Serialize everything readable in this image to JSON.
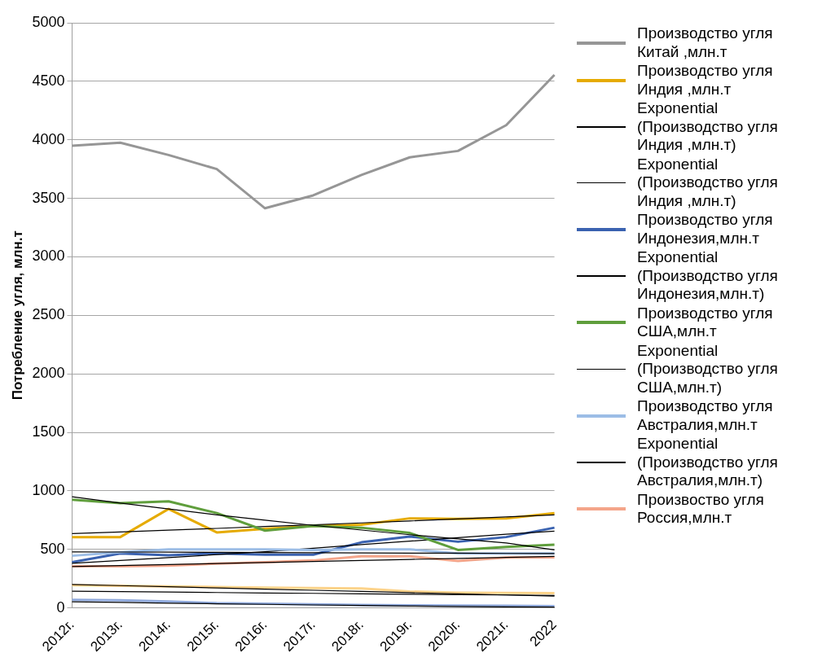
{
  "chart_data": {
    "type": "line",
    "ylabel": "Потребление угля, млн.т",
    "categories": [
      "2012г.",
      "2013г.",
      "2014г.",
      "2015г.",
      "2016г.",
      "2017г.",
      "2018г.",
      "2019г.",
      "2020г.",
      "2021г.",
      "2022"
    ],
    "ylim": [
      0,
      5000
    ],
    "yticks": [
      0,
      500,
      1000,
      1500,
      2000,
      2500,
      3000,
      3500,
      4000,
      4500,
      5000
    ],
    "grid": "y",
    "legend": "right",
    "marker": "none",
    "line_style": "solid",
    "series": [
      {
        "name": "Производство угля Китай ,млн.т",
        "color": "#969696",
        "values": [
          3950,
          3975,
          3870,
          3750,
          3415,
          3525,
          3700,
          3850,
          3905,
          4125,
          4555
        ]
      },
      {
        "name": "Производство угля Индия ,млн.т",
        "color": "#e6ab02",
        "values": [
          605,
          605,
          845,
          645,
          675,
          700,
          710,
          765,
          760,
          765,
          810
        ]
      },
      {
        "name": "Exponential (Производство угля Индия ,млн.т)",
        "color": "#000000",
        "values": [
          635,
          649,
          664,
          679,
          695,
          710,
          726,
          743,
          760,
          777,
          795
        ]
      },
      {
        "name": "Exponential (Производство угля Индия ,млн.т)",
        "color": "#000000",
        "values": [
          143,
          139,
          135,
          131,
          127,
          124,
          120,
          116,
          113,
          110,
          106
        ]
      },
      {
        "name": "Производство угля Индонезия,млн.т",
        "color": "#3a62b0",
        "values": [
          390,
          465,
          450,
          465,
          455,
          455,
          560,
          610,
          565,
          605,
          685
        ]
      },
      {
        "name": "Exponential (Производство угля Индонезия,млн.т)",
        "color": "#000000",
        "values": [
          380,
          405,
          430,
          455,
          480,
          510,
          540,
          570,
          600,
          630,
          655
        ]
      },
      {
        "name": "Производство угля США,млн.т",
        "color": "#5f9e3c",
        "values": [
          925,
          895,
          910,
          810,
          660,
          700,
          685,
          640,
          495,
          520,
          540
        ]
      },
      {
        "name": "Exponential (Производство угля США,млн.т)",
        "color": "#000000",
        "values": [
          950,
          895,
          845,
          795,
          750,
          705,
          665,
          625,
          590,
          555,
          495
        ]
      },
      {
        "name": "Производство угля Австралия,млн.т",
        "color": "#9cbde6",
        "values": [
          445,
          475,
          500,
          500,
          500,
          495,
          500,
          500,
          465,
          465,
          465
        ]
      },
      {
        "name": "Exponential (Производство угля Австралия,млн.т)",
        "color": "#000000",
        "values": [
          478,
          477,
          476,
          474,
          473,
          471,
          470,
          468,
          467,
          465,
          464
        ]
      },
      {
        "name": "Произвоство угля Россия,млн.т",
        "color": "#f4a58a",
        "values": [
          355,
          355,
          360,
          378,
          390,
          405,
          440,
          440,
          400,
          430,
          432
        ]
      },
      {
        "color": "#000000",
        "values": [
          353,
          362,
          370,
          379,
          388,
          396,
          405,
          414,
          422,
          431,
          440
        ]
      },
      {
        "color": "#fdd38a",
        "values": [
          193,
          188,
          183,
          178,
          173,
          170,
          165,
          140,
          130,
          128,
          126
        ]
      },
      {
        "color": "#000000",
        "values": [
          200,
          190,
          180,
          170,
          160,
          150,
          140,
          130,
          120,
          110,
          101
        ]
      },
      {
        "color": "#8fa9dc",
        "values": [
          69,
          65,
          55,
          40,
          35,
          30,
          25,
          22,
          20,
          18,
          15
        ]
      },
      {
        "color": "#000000",
        "values": [
          52,
          46,
          40,
          35,
          30,
          25,
          20,
          16,
          12,
          9,
          7
        ]
      }
    ]
  }
}
